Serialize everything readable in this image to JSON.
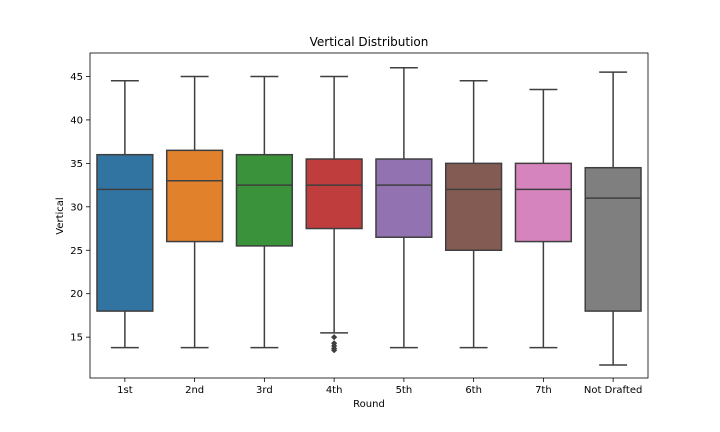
{
  "chart_data": {
    "type": "box",
    "title": "Vertical Distribution",
    "xlabel": "Round",
    "ylabel": "Vertical",
    "ylim": [
      10.3,
      47.7
    ],
    "yticks": [
      15,
      20,
      25,
      30,
      35,
      40,
      45
    ],
    "grid": false,
    "legend": "none",
    "categories": [
      "1st",
      "2nd",
      "3rd",
      "4th",
      "5th",
      "6th",
      "7th",
      "Not Drafted"
    ],
    "series": [
      {
        "category": "1st",
        "whisker_low": 13.8,
        "q1": 18.0,
        "median": 32.0,
        "q3": 36.0,
        "whisker_high": 44.5,
        "outliers": [],
        "color": "#3274a1"
      },
      {
        "category": "2nd",
        "whisker_low": 13.8,
        "q1": 26.0,
        "median": 33.0,
        "q3": 36.5,
        "whisker_high": 45.0,
        "outliers": [],
        "color": "#e1812c"
      },
      {
        "category": "3rd",
        "whisker_low": 13.8,
        "q1": 25.5,
        "median": 32.5,
        "q3": 36.0,
        "whisker_high": 45.0,
        "outliers": [],
        "color": "#3a923a"
      },
      {
        "category": "4th",
        "whisker_low": 15.5,
        "q1": 27.5,
        "median": 32.5,
        "q3": 35.5,
        "whisker_high": 45.0,
        "outliers": [
          13.5,
          13.7,
          14.0,
          14.3,
          15.0
        ],
        "color": "#c03d3e"
      },
      {
        "category": "5th",
        "whisker_low": 13.8,
        "q1": 26.5,
        "median": 32.5,
        "q3": 35.5,
        "whisker_high": 46.0,
        "outliers": [],
        "color": "#9372b2"
      },
      {
        "category": "6th",
        "whisker_low": 13.8,
        "q1": 25.0,
        "median": 32.0,
        "q3": 35.0,
        "whisker_high": 44.5,
        "outliers": [],
        "color": "#845b53"
      },
      {
        "category": "7th",
        "whisker_low": 13.8,
        "q1": 26.0,
        "median": 32.0,
        "q3": 35.0,
        "whisker_high": 43.5,
        "outliers": [],
        "color": "#d684bd"
      },
      {
        "category": "Not Drafted",
        "whisker_low": 11.8,
        "q1": 18.0,
        "median": 31.0,
        "q3": 34.5,
        "whisker_high": 45.5,
        "outliers": [],
        "color": "#7f7f7f"
      }
    ]
  }
}
